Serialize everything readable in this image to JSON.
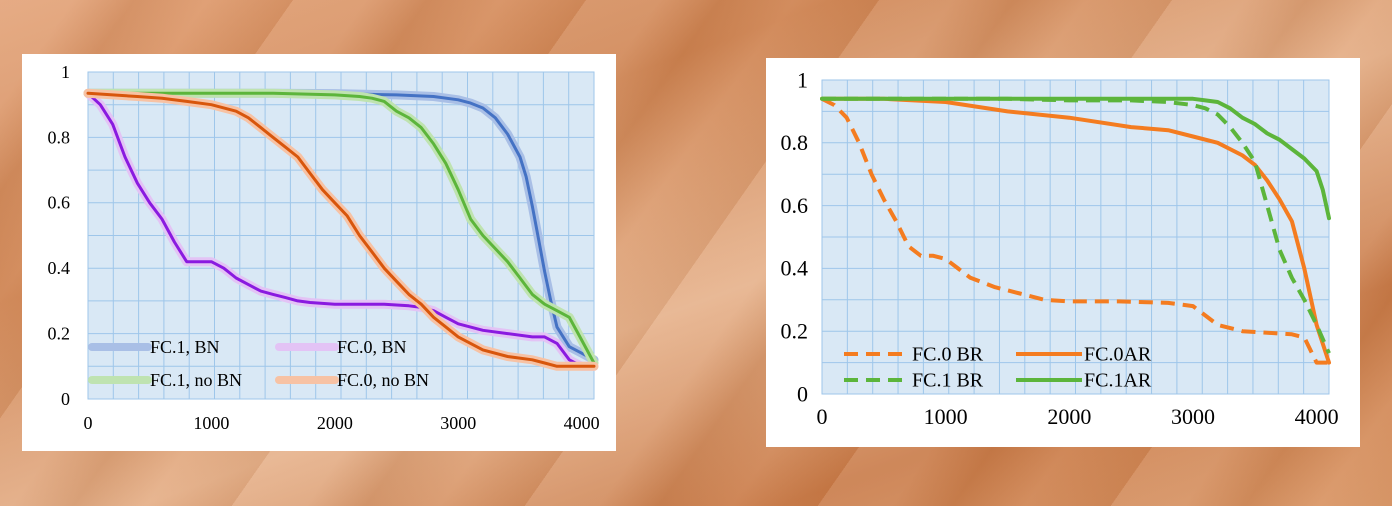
{
  "chart_data": [
    {
      "type": "line",
      "title": "",
      "xlabel": "",
      "ylabel": "",
      "xlim": [
        0,
        4100
      ],
      "ylim": [
        0,
        1
      ],
      "xticks": [
        0,
        1000,
        2000,
        3000,
        4000
      ],
      "yticks": [
        0,
        0.2,
        0.4,
        0.6,
        0.8,
        1
      ],
      "xtick_labels": [
        "0",
        "1000",
        "2000",
        "3000",
        "4000"
      ],
      "ytick_labels": [
        "0",
        "0.2",
        "0.4",
        "0.6",
        "0.8",
        "1"
      ],
      "grid": true,
      "legend_position": "bottom-left",
      "series": [
        {
          "name": "FC.1, BN",
          "color": "#4472c4",
          "halo": "#a9bfe6",
          "x": [
            0,
            500,
            1000,
            1500,
            2000,
            2500,
            2800,
            3000,
            3100,
            3200,
            3300,
            3400,
            3500,
            3550,
            3600,
            3650,
            3700,
            3750,
            3800,
            3900,
            4000,
            4100
          ],
          "y": [
            0.935,
            0.935,
            0.935,
            0.935,
            0.934,
            0.93,
            0.925,
            0.915,
            0.905,
            0.89,
            0.86,
            0.81,
            0.74,
            0.68,
            0.59,
            0.49,
            0.39,
            0.3,
            0.22,
            0.16,
            0.14,
            0.12
          ]
        },
        {
          "name": "FC.0, BN",
          "color": "#8a1ae0",
          "halo": "#e3c3f5",
          "x": [
            0,
            100,
            200,
            300,
            400,
            500,
            600,
            700,
            800,
            900,
            1000,
            1100,
            1200,
            1300,
            1400,
            1500,
            1600,
            1700,
            1800,
            2000,
            2200,
            2400,
            2600,
            2700,
            2800,
            2900,
            3000,
            3200,
            3400,
            3600,
            3700,
            3800,
            3900,
            4000,
            4100
          ],
          "y": [
            0.935,
            0.9,
            0.84,
            0.74,
            0.66,
            0.6,
            0.55,
            0.48,
            0.42,
            0.42,
            0.42,
            0.4,
            0.37,
            0.35,
            0.33,
            0.32,
            0.31,
            0.3,
            0.295,
            0.29,
            0.29,
            0.29,
            0.285,
            0.28,
            0.27,
            0.25,
            0.23,
            0.21,
            0.2,
            0.19,
            0.19,
            0.17,
            0.12,
            0.1,
            0.1
          ]
        },
        {
          "name": "FC.1, no BN",
          "color": "#5cb53b",
          "halo": "#bfe3b0",
          "x": [
            0,
            500,
            1000,
            1500,
            2000,
            2200,
            2300,
            2400,
            2500,
            2600,
            2700,
            2800,
            2900,
            3000,
            3100,
            3200,
            3300,
            3400,
            3500,
            3600,
            3700,
            3800,
            3900,
            4000,
            4100
          ],
          "y": [
            0.935,
            0.935,
            0.935,
            0.935,
            0.93,
            0.925,
            0.92,
            0.91,
            0.88,
            0.86,
            0.83,
            0.78,
            0.72,
            0.64,
            0.55,
            0.5,
            0.46,
            0.42,
            0.37,
            0.32,
            0.29,
            0.27,
            0.25,
            0.18,
            0.11
          ]
        },
        {
          "name": "FC.0, no BN",
          "color": "#d8560c",
          "halo": "#f7c2a4",
          "x": [
            0,
            200,
            400,
            600,
            800,
            1000,
            1200,
            1300,
            1400,
            1500,
            1600,
            1700,
            1800,
            1900,
            2000,
            2100,
            2200,
            2300,
            2400,
            2500,
            2600,
            2700,
            2800,
            2900,
            3000,
            3200,
            3400,
            3600,
            3700,
            3800,
            4000,
            4100
          ],
          "y": [
            0.935,
            0.93,
            0.925,
            0.92,
            0.91,
            0.9,
            0.88,
            0.86,
            0.83,
            0.8,
            0.77,
            0.74,
            0.69,
            0.64,
            0.6,
            0.56,
            0.5,
            0.45,
            0.4,
            0.36,
            0.32,
            0.29,
            0.25,
            0.22,
            0.19,
            0.15,
            0.13,
            0.12,
            0.11,
            0.1,
            0.1,
            0.1
          ]
        }
      ]
    },
    {
      "type": "line",
      "title": "",
      "xlabel": "",
      "ylabel": "",
      "xlim": [
        0,
        4100
      ],
      "ylim": [
        0,
        1
      ],
      "xticks": [
        0,
        1000,
        2000,
        3000,
        4000
      ],
      "yticks": [
        0,
        0.2,
        0.4,
        0.6,
        0.8,
        1
      ],
      "xtick_labels": [
        "0",
        "1000",
        "2000",
        "3000",
        "4000"
      ],
      "ytick_labels": [
        "0",
        "0.2",
        "0.4",
        "0.6",
        "0.8",
        "1"
      ],
      "grid": true,
      "legend_position": "bottom-left",
      "series": [
        {
          "name": "FC.0 BR",
          "color": "#f47c20",
          "dashed": true,
          "x": [
            0,
            100,
            200,
            300,
            400,
            500,
            600,
            700,
            800,
            900,
            1000,
            1100,
            1200,
            1400,
            1600,
            1800,
            2000,
            2400,
            2800,
            3000,
            3200,
            3400,
            3800,
            3900,
            4000,
            4100
          ],
          "y": [
            0.94,
            0.92,
            0.88,
            0.8,
            0.7,
            0.62,
            0.55,
            0.47,
            0.44,
            0.44,
            0.43,
            0.4,
            0.37,
            0.34,
            0.32,
            0.3,
            0.295,
            0.295,
            0.29,
            0.28,
            0.22,
            0.2,
            0.19,
            0.18,
            0.1,
            0.1
          ]
        },
        {
          "name": "FC.0AR",
          "color": "#f47c20",
          "dashed": false,
          "x": [
            0,
            500,
            1000,
            1500,
            2000,
            2500,
            2800,
            3000,
            3200,
            3300,
            3400,
            3500,
            3600,
            3700,
            3800,
            3900,
            4000,
            4100
          ],
          "y": [
            0.94,
            0.94,
            0.93,
            0.9,
            0.88,
            0.85,
            0.84,
            0.82,
            0.8,
            0.78,
            0.76,
            0.73,
            0.68,
            0.62,
            0.55,
            0.4,
            0.22,
            0.1
          ]
        },
        {
          "name": "FC.1 BR",
          "color": "#5cb53b",
          "dashed": true,
          "x": [
            0,
            500,
            1000,
            1500,
            2000,
            2500,
            2800,
            3000,
            3100,
            3200,
            3300,
            3400,
            3500,
            3600,
            3700,
            3800,
            3900,
            4000,
            4100
          ],
          "y": [
            0.94,
            0.94,
            0.94,
            0.94,
            0.935,
            0.935,
            0.93,
            0.92,
            0.91,
            0.89,
            0.85,
            0.8,
            0.74,
            0.6,
            0.46,
            0.37,
            0.3,
            0.22,
            0.13
          ]
        },
        {
          "name": "FC.1AR",
          "color": "#5cb53b",
          "dashed": false,
          "x": [
            0,
            500,
            1000,
            1500,
            2000,
            2500,
            3000,
            3100,
            3200,
            3300,
            3400,
            3500,
            3600,
            3700,
            3800,
            3900,
            4000,
            4050,
            4100
          ],
          "y": [
            0.94,
            0.94,
            0.94,
            0.94,
            0.94,
            0.94,
            0.94,
            0.935,
            0.93,
            0.91,
            0.88,
            0.86,
            0.83,
            0.81,
            0.78,
            0.75,
            0.71,
            0.65,
            0.56
          ]
        }
      ]
    }
  ]
}
